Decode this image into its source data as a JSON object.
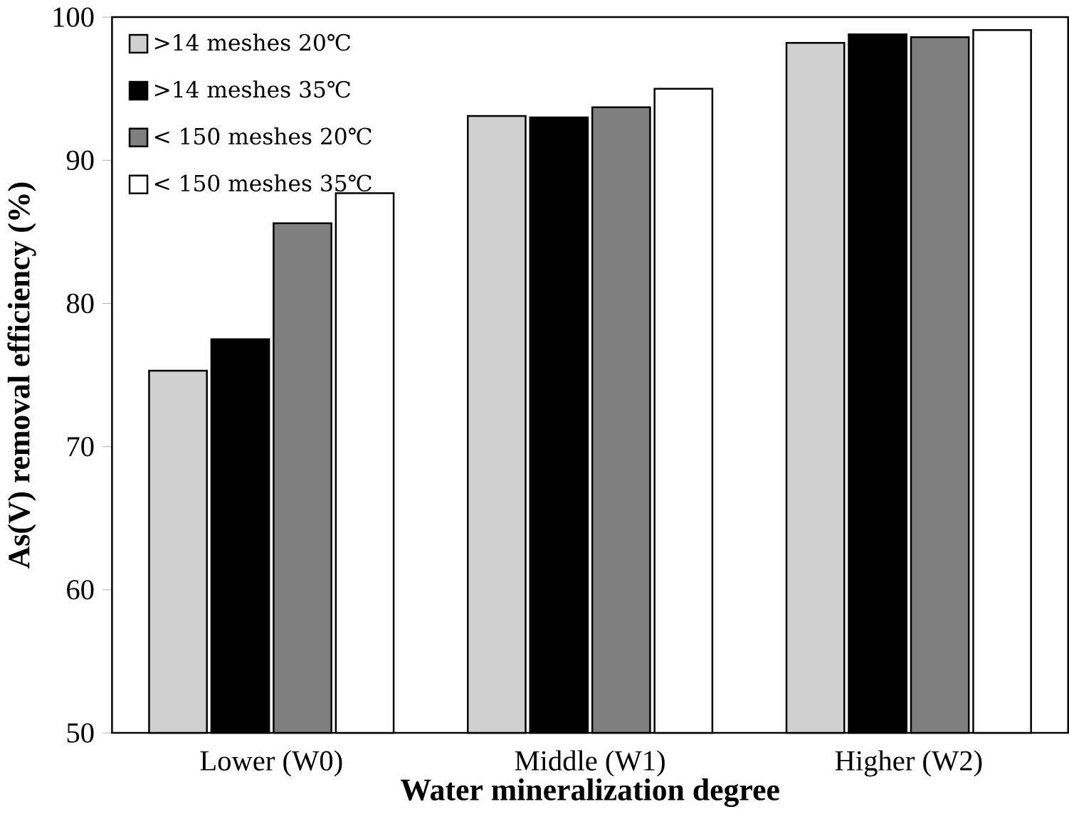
{
  "chart_data": {
    "type": "bar",
    "xlabel": "Water mineralization degree",
    "ylabel": "As(V)  removal  efficiency (%)",
    "categories": [
      "Lower (W0)",
      "Middle (W1)",
      "Higher (W2)"
    ],
    "series": [
      {
        "name": ">14 meshes 20℃",
        "color": "#d0d0d0",
        "values": [
          75.3,
          93.1,
          98.2
        ]
      },
      {
        "name": ">14 meshes 35℃",
        "color": "#000000",
        "values": [
          77.5,
          93.0,
          98.8
        ]
      },
      {
        "name": "< 150 meshes 20℃",
        "color": "#7f7f7f",
        "values": [
          85.6,
          93.7,
          98.6
        ]
      },
      {
        "name": "< 150 meshes 35℃",
        "color": "#ffffff",
        "values": [
          87.7,
          95.0,
          99.1
        ]
      }
    ],
    "ylim": [
      50,
      100
    ],
    "yticks": [
      50,
      60,
      70,
      80,
      90,
      100
    ],
    "grid": false,
    "legend": "top left"
  }
}
